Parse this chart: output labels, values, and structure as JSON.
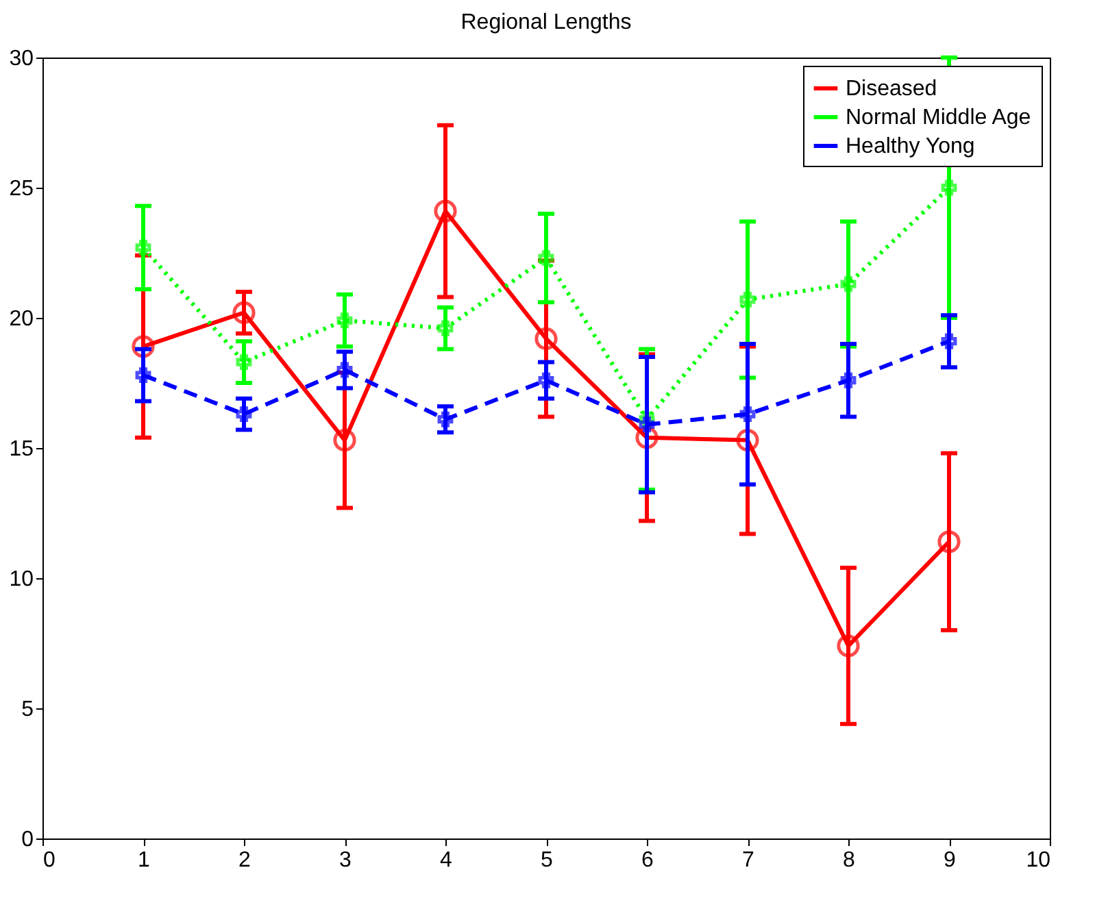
{
  "chart_data": {
    "type": "line",
    "title": "Regional Lengths",
    "x": [
      1,
      2,
      3,
      4,
      5,
      6,
      7,
      8,
      9
    ],
    "xlim": [
      0,
      10
    ],
    "xticks": [
      0,
      1,
      2,
      3,
      4,
      5,
      6,
      7,
      8,
      9,
      10
    ],
    "ylim": [
      0,
      30
    ],
    "yticks": [
      0,
      5,
      10,
      15,
      20,
      25,
      30
    ],
    "grid": false,
    "legend": "top right",
    "series": [
      {
        "name": "Diseased",
        "color": "#ff0000",
        "marker": "circle",
        "line_style": "solid",
        "values": [
          18.9,
          20.2,
          15.3,
          24.1,
          19.2,
          15.4,
          15.3,
          7.4,
          11.4
        ],
        "errors": [
          3.5,
          0.8,
          2.6,
          3.3,
          3.0,
          3.2,
          3.6,
          3.0,
          3.4
        ]
      },
      {
        "name": "Normal Middle Age",
        "color": "#00ff00",
        "marker": "cross",
        "line_style": "dotted",
        "values": [
          22.7,
          18.3,
          19.9,
          19.6,
          22.3,
          16.1,
          20.7,
          21.3,
          25.0
        ],
        "errors": [
          1.6,
          0.8,
          1.0,
          0.8,
          1.7,
          2.7,
          3.0,
          2.4,
          5.0
        ]
      },
      {
        "name": "Healthy Yong",
        "color": "#0000ff",
        "marker": "cross",
        "line_style": "dashed",
        "values": [
          17.8,
          16.3,
          18.0,
          16.1,
          17.6,
          15.9,
          16.3,
          17.6,
          19.1
        ],
        "errors": [
          1.0,
          0.6,
          0.7,
          0.5,
          0.7,
          2.6,
          2.7,
          1.4,
          1.0
        ]
      }
    ]
  }
}
